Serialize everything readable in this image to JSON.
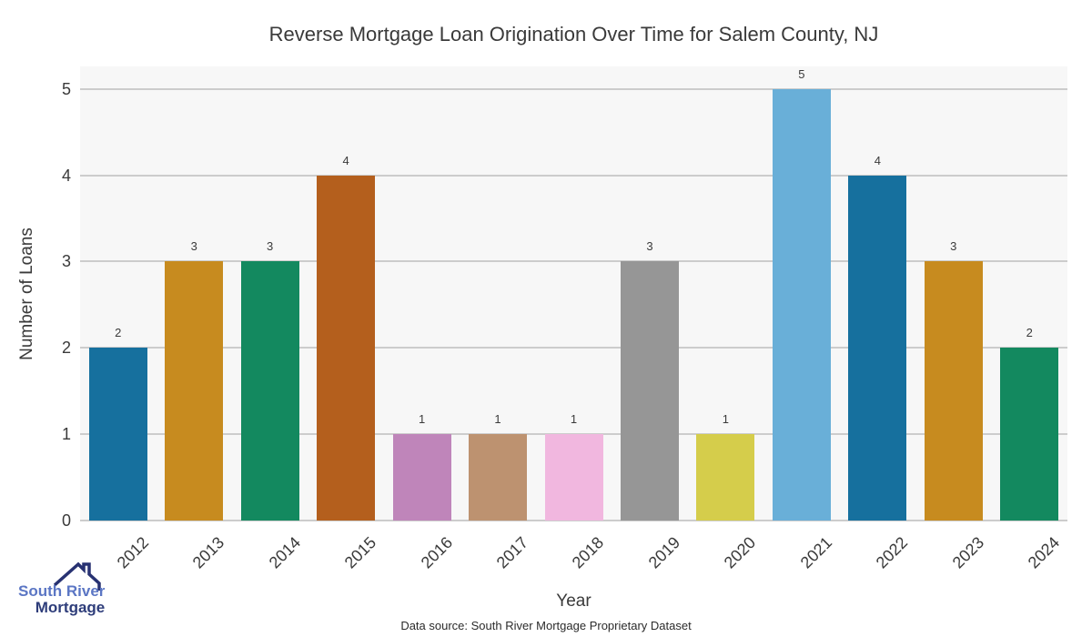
{
  "chart_data": {
    "type": "bar",
    "title": "Reverse Mortgage Loan Origination Over Time for Salem County, NJ",
    "xlabel": "Year",
    "ylabel": "Number of Loans",
    "categories": [
      "2012",
      "2013",
      "2014",
      "2015",
      "2016",
      "2017",
      "2018",
      "2019",
      "2020",
      "2021",
      "2022",
      "2023",
      "2024"
    ],
    "values": [
      2,
      3,
      3,
      4,
      1,
      1,
      1,
      3,
      1,
      5,
      4,
      3,
      2
    ],
    "bar_colors": [
      "#16709e",
      "#c78b1f",
      "#13895f",
      "#b45f1d",
      "#bf85ba",
      "#bd9270",
      "#f1b7df",
      "#969696",
      "#d5cd4b",
      "#69afd8",
      "#16709e",
      "#c78b1f",
      "#13895f"
    ],
    "value_labels": [
      "2",
      "3",
      "3",
      "4",
      "1",
      "1",
      "1",
      "3",
      "1",
      "5",
      "4",
      "3",
      "2"
    ],
    "yticks": [
      0,
      1,
      2,
      3,
      4,
      5
    ],
    "ylim": [
      0,
      5.26
    ],
    "grid": true,
    "legend": "none",
    "plot_background": "#f7f7f7",
    "gridline_color": "#cccccc",
    "text_color": "#3a3a3a"
  },
  "footer": {
    "data_source": "Data source: South River Mortgage Proprietary Dataset"
  },
  "logo": {
    "icon": "house-roof-icon",
    "line1": "South River",
    "line2": "Mortgage",
    "line1_color": "#5b76c4",
    "line2_color": "#2e3d7a",
    "icon_color": "#283272"
  }
}
